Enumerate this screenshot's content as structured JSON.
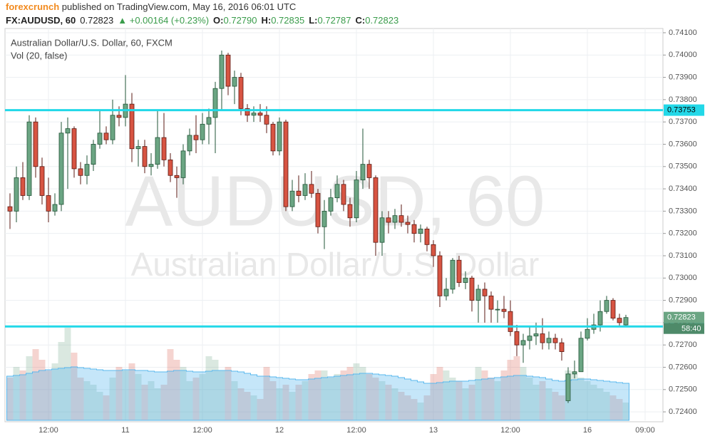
{
  "header": {
    "author": "forexcrunch",
    "published": " published on TradingView.com, May 16, 2016 06:01 UTC",
    "symbol": "FX:AUDUSD, 60",
    "price": "0.72823",
    "change": "▲ +0.00164 (+0.23%)",
    "o_label": "O:",
    "o": "0.72790",
    "h_label": "H:",
    "h": "0.72835",
    "l_label": "L:",
    "l": "0.72787",
    "c_label": "C:",
    "c": "0.72823"
  },
  "chart_data": {
    "type": "candlestick",
    "title": "Australian Dollar/U.S. Dollar, 60, FXCM",
    "volume_label": "Vol (20, false)",
    "watermark": [
      "AUDUSD, 60",
      "Australian Dollar/U.S. Dollar"
    ],
    "categories": [
      null,
      null,
      null,
      null,
      null,
      null,
      "12:00",
      null,
      null,
      null,
      null,
      null,
      null,
      null,
      null,
      null,
      null,
      null,
      "11",
      null,
      null,
      null,
      null,
      null,
      null,
      null,
      null,
      null,
      null,
      null,
      "12:00",
      null,
      null,
      null,
      null,
      null,
      null,
      null,
      null,
      null,
      null,
      null,
      "12",
      null,
      null,
      null,
      null,
      null,
      null,
      null,
      null,
      null,
      null,
      null,
      "12:00",
      null,
      null,
      null,
      null,
      null,
      null,
      null,
      null,
      null,
      null,
      null,
      "13",
      null,
      null,
      null,
      null,
      null,
      null,
      null,
      null,
      null,
      null,
      null,
      "12:00",
      null,
      null,
      null,
      null,
      null,
      null,
      null,
      null,
      null,
      null,
      null,
      "16",
      null,
      null,
      null,
      null,
      null,
      null,
      null,
      null,
      "09:00"
    ],
    "open": [
      0.7332,
      0.733,
      0.7345,
      0.7337,
      0.737,
      0.735,
      0.7337,
      0.733,
      0.7333,
      0.7365,
      0.7367,
      0.7349,
      0.7346,
      0.7351,
      0.736,
      0.7365,
      0.7362,
      0.7373,
      0.7372,
      0.7378,
      0.7358,
      0.7359,
      0.735,
      0.7351,
      0.7363,
      0.7353,
      0.7346,
      0.7345,
      0.7357,
      0.7364,
      0.7362,
      0.7369,
      0.7372,
      0.7385,
      0.74,
      0.7386,
      0.739,
      0.7376,
      0.7373,
      0.7374,
      0.7373,
      0.7369,
      0.7357,
      0.737,
      0.7332,
      0.7339,
      0.7337,
      0.7342,
      0.7338,
      0.7323,
      0.733,
      0.7336,
      0.7342,
      0.7333,
      0.7327,
      0.7344,
      0.7351,
      0.7345,
      0.7316,
      0.7327,
      0.7325,
      0.7328,
      0.7325,
      0.7324,
      0.732,
      0.7322,
      0.7315,
      0.731,
      0.7292,
      0.7295,
      0.7308,
      0.7298,
      0.73,
      0.729,
      0.7295,
      0.7292,
      0.7286,
      0.7286,
      0.7285,
      0.7276,
      0.727,
      0.7272,
      0.7274,
      0.7275,
      0.7271,
      0.7273,
      0.7271,
      0.7245,
      0.7257,
      0.7258,
      0.7273,
      0.7277,
      0.7279,
      0.7285,
      0.729,
      0.7282,
      0.7279,
      null,
      null,
      null
    ],
    "high": [
      0.7338,
      0.735,
      0.7352,
      0.7373,
      0.7372,
      0.7354,
      0.7345,
      0.7338,
      0.737,
      0.7372,
      0.7368,
      0.7352,
      0.7355,
      0.7362,
      0.7375,
      0.7368,
      0.738,
      0.7377,
      0.7391,
      0.7383,
      0.7362,
      0.7362,
      0.7356,
      0.7375,
      0.7374,
      0.7356,
      0.735,
      0.736,
      0.7367,
      0.7373,
      0.7374,
      0.7376,
      0.7388,
      0.7402,
      0.7401,
      0.7393,
      0.7392,
      0.7378,
      0.7377,
      0.7378,
      0.7377,
      0.737,
      0.7372,
      0.7371,
      0.7344,
      0.7346,
      0.7347,
      0.7348,
      0.734,
      0.7335,
      0.734,
      0.7346,
      0.7344,
      0.7336,
      0.7348,
      0.7367,
      0.7353,
      0.7346,
      0.733,
      0.733,
      0.7331,
      0.7333,
      0.7328,
      0.7326,
      0.7324,
      0.7323,
      0.7317,
      0.7312,
      0.73,
      0.7309,
      0.731,
      0.7303,
      0.7301,
      0.7297,
      0.7298,
      0.7294,
      0.729,
      0.7292,
      0.729,
      0.7279,
      0.7275,
      0.7278,
      0.728,
      0.7282,
      0.7276,
      0.7275,
      0.7273,
      0.726,
      0.7263,
      0.7276,
      0.7282,
      0.7284,
      0.729,
      0.7292,
      0.7291,
      0.7284,
      0.72835,
      null,
      null,
      null
    ],
    "low": [
      0.7322,
      0.7325,
      0.7335,
      0.7335,
      0.7345,
      0.7333,
      0.7325,
      0.7328,
      0.733,
      0.734,
      0.7345,
      0.7342,
      0.7342,
      0.7348,
      0.7358,
      0.736,
      0.736,
      0.7368,
      0.7368,
      0.7352,
      0.735,
      0.7347,
      0.7346,
      0.7349,
      0.735,
      0.7343,
      0.7336,
      0.7342,
      0.7355,
      0.7356,
      0.736,
      0.736,
      0.7356,
      0.7375,
      0.7382,
      0.7378,
      0.7373,
      0.737,
      0.737,
      0.737,
      0.7365,
      0.7355,
      0.7355,
      0.733,
      0.733,
      0.7334,
      0.7335,
      0.7336,
      0.732,
      0.7313,
      0.7328,
      0.7334,
      0.733,
      0.7323,
      0.7325,
      0.734,
      0.734,
      0.731,
      0.731,
      0.732,
      0.7322,
      0.7323,
      0.732,
      0.7316,
      0.7316,
      0.7312,
      0.7305,
      0.7287,
      0.729,
      0.7293,
      0.7296,
      0.7295,
      0.7285,
      0.728,
      0.728,
      0.728,
      0.728,
      0.7282,
      0.7274,
      0.7265,
      0.7262,
      0.7268,
      0.727,
      0.7268,
      0.7268,
      0.7268,
      0.7263,
      0.7244,
      0.7255,
      0.7258,
      0.7272,
      0.7275,
      0.7276,
      0.7284,
      0.7281,
      0.7278,
      0.72787,
      null,
      null,
      null
    ],
    "close": [
      0.733,
      0.7345,
      0.7337,
      0.737,
      0.735,
      0.7337,
      0.733,
      0.7333,
      0.7365,
      0.7367,
      0.7349,
      0.7346,
      0.7351,
      0.736,
      0.7365,
      0.7362,
      0.7373,
      0.7372,
      0.7378,
      0.7358,
      0.7359,
      0.735,
      0.7351,
      0.7363,
      0.7353,
      0.7346,
      0.7345,
      0.7357,
      0.7364,
      0.7362,
      0.7369,
      0.7372,
      0.7385,
      0.74,
      0.7386,
      0.739,
      0.7376,
      0.7373,
      0.7374,
      0.7373,
      0.7369,
      0.7357,
      0.737,
      0.7332,
      0.7339,
      0.7337,
      0.7342,
      0.7338,
      0.7323,
      0.733,
      0.7336,
      0.7342,
      0.7333,
      0.7327,
      0.7344,
      0.7351,
      0.7345,
      0.7316,
      0.7327,
      0.7325,
      0.7328,
      0.7325,
      0.7324,
      0.732,
      0.7322,
      0.7315,
      0.731,
      0.7292,
      0.7295,
      0.7308,
      0.7298,
      0.73,
      0.729,
      0.7295,
      0.7292,
      0.7286,
      0.7286,
      0.7285,
      0.7276,
      0.727,
      0.7272,
      0.7274,
      0.7275,
      0.7271,
      0.7273,
      0.7271,
      0.7267,
      0.7257,
      0.7258,
      0.7273,
      0.7277,
      0.7279,
      0.7285,
      0.729,
      0.7282,
      0.728,
      0.72823,
      null,
      null,
      null
    ],
    "volume": [
      60,
      75,
      70,
      90,
      100,
      85,
      70,
      80,
      110,
      130,
      95,
      60,
      55,
      50,
      40,
      35,
      60,
      75,
      70,
      80,
      65,
      50,
      55,
      45,
      50,
      100,
      85,
      75,
      55,
      60,
      65,
      90,
      85,
      70,
      75,
      55,
      45,
      40,
      35,
      30,
      75,
      55,
      45,
      50,
      40,
      50,
      55,
      65,
      70,
      70,
      60,
      65,
      70,
      75,
      80,
      75,
      65,
      60,
      55,
      50,
      45,
      40,
      35,
      30,
      25,
      35,
      65,
      75,
      70,
      60,
      55,
      45,
      50,
      75,
      70,
      60,
      55,
      70,
      85,
      90,
      75,
      60,
      50,
      55,
      45,
      40,
      35,
      70,
      65,
      60,
      55,
      50,
      45,
      40,
      35,
      30,
      25,
      null,
      null,
      null
    ],
    "volume_ma": [
      62,
      63,
      64,
      66,
      68,
      70,
      71,
      72,
      73,
      74,
      75,
      74,
      73,
      72,
      71,
      70,
      70,
      70,
      71,
      71,
      70,
      70,
      69,
      68,
      68,
      69,
      70,
      70,
      69,
      68,
      68,
      69,
      70,
      70,
      70,
      69,
      68,
      66,
      64,
      62,
      62,
      61,
      60,
      59,
      58,
      57,
      57,
      58,
      59,
      60,
      61,
      62,
      63,
      64,
      65,
      66,
      66,
      65,
      64,
      63,
      62,
      60,
      58,
      56,
      54,
      52,
      52,
      53,
      54,
      55,
      55,
      55,
      56,
      57,
      58,
      59,
      60,
      61,
      62,
      63,
      63,
      62,
      61,
      60,
      58,
      56,
      55,
      56,
      57,
      58,
      58,
      57,
      56,
      55,
      54,
      53,
      52,
      null,
      null,
      null
    ],
    "ylim": [
      0.72362,
      0.74119
    ],
    "yticks": [
      {
        "value": 0.724,
        "label": "0.72400"
      },
      {
        "value": 0.725,
        "label": "0.72500"
      },
      {
        "value": 0.726,
        "label": "0.72600"
      },
      {
        "value": 0.727,
        "label": "0.72700"
      },
      {
        "value": 0.728,
        "label": "0.72800"
      },
      {
        "value": 0.729,
        "label": "0.72900"
      },
      {
        "value": 0.73,
        "label": "0.73000"
      },
      {
        "value": 0.731,
        "label": "0.73100"
      },
      {
        "value": 0.732,
        "label": "0.73200"
      },
      {
        "value": 0.733,
        "label": "0.73300"
      },
      {
        "value": 0.734,
        "label": "0.73400"
      },
      {
        "value": 0.735,
        "label": "0.73500"
      },
      {
        "value": 0.736,
        "label": "0.73600"
      },
      {
        "value": 0.737,
        "label": "0.73700"
      },
      {
        "value": 0.738,
        "label": "0.73800"
      },
      {
        "value": 0.739,
        "label": "0.73900"
      },
      {
        "value": 0.74,
        "label": "0.74000"
      },
      {
        "value": 0.741,
        "label": "0.74100"
      }
    ],
    "hlines": [
      0.73753,
      0.72783
    ],
    "last_price": 0.72823,
    "countdown": "58:40",
    "grid": true,
    "up_color": "#6ba583",
    "down_color": "#d75442",
    "hline_color": "#22d8e8",
    "volume_ma_color": "#5ab8ee"
  }
}
